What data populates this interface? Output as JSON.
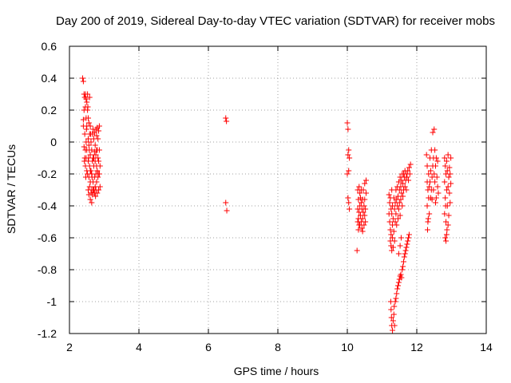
{
  "chart_data": {
    "type": "scatter",
    "title": "Day 200 of 2019, Sidereal Day-to-day VTEC variation (SDTVAR) for receiver mobs",
    "xlabel": "GPS time / hours",
    "ylabel": "SDTVAR / TECUs",
    "xlim": [
      2,
      14
    ],
    "ylim": [
      -1.2,
      0.6
    ],
    "xticks": [
      2,
      4,
      6,
      8,
      10,
      12,
      14
    ],
    "yticks": [
      0.6,
      0.4,
      0.2,
      0,
      -0.2,
      -0.4,
      -0.6,
      -0.8,
      -1,
      -1.2
    ],
    "xtick_labels": [
      "2",
      "4",
      "6",
      "8",
      "10",
      "12",
      "14"
    ],
    "ytick_labels": [
      "0.6",
      "0.4",
      "0.2",
      "0",
      "-0.2",
      "-0.4",
      "-0.6",
      "-0.8",
      "-1",
      "-1.2"
    ],
    "grid": true,
    "marker": "+",
    "series": [
      {
        "name": "SDTVAR",
        "color": "#ff0000",
        "points": [
          [
            2.38,
            0.4
          ],
          [
            2.4,
            0.38
          ],
          [
            2.4,
            0.14
          ],
          [
            2.4,
            0.1
          ],
          [
            2.42,
            0.3
          ],
          [
            2.42,
            0.2
          ],
          [
            2.42,
            -0.03
          ],
          [
            2.44,
            0.28
          ],
          [
            2.44,
            0.05
          ],
          [
            2.44,
            -0.1
          ],
          [
            2.46,
            0.3
          ],
          [
            2.46,
            0.22
          ],
          [
            2.46,
            -0.05
          ],
          [
            2.46,
            -0.15
          ],
          [
            2.48,
            0.27
          ],
          [
            2.48,
            0.15
          ],
          [
            2.48,
            0.0
          ],
          [
            2.48,
            -0.1
          ],
          [
            2.5,
            0.25
          ],
          [
            2.5,
            0.1
          ],
          [
            2.5,
            -0.05
          ],
          [
            2.5,
            -0.18
          ],
          [
            2.52,
            0.3
          ],
          [
            2.52,
            0.2
          ],
          [
            2.52,
            -0.2
          ],
          [
            2.54,
            0.15
          ],
          [
            2.54,
            0.02
          ],
          [
            2.54,
            -0.12
          ],
          [
            2.54,
            -0.3
          ],
          [
            2.56,
            0.12
          ],
          [
            2.56,
            -0.02
          ],
          [
            2.56,
            -0.22
          ],
          [
            2.56,
            -0.33
          ],
          [
            2.58,
            0.28
          ],
          [
            2.58,
            0.05
          ],
          [
            2.58,
            -0.15
          ],
          [
            2.58,
            -0.28
          ],
          [
            2.6,
            0.1
          ],
          [
            2.6,
            -0.08
          ],
          [
            2.6,
            -0.25
          ],
          [
            2.6,
            -0.36
          ],
          [
            2.62,
            0.0
          ],
          [
            2.62,
            -0.18
          ],
          [
            2.62,
            -0.32
          ],
          [
            2.64,
            -0.05
          ],
          [
            2.64,
            -0.2
          ],
          [
            2.64,
            -0.3
          ],
          [
            2.64,
            -0.38
          ],
          [
            2.66,
            0.05
          ],
          [
            2.66,
            -0.12
          ],
          [
            2.66,
            -0.33
          ],
          [
            2.68,
            0.08
          ],
          [
            2.68,
            -0.1
          ],
          [
            2.68,
            -0.25
          ],
          [
            2.7,
            0.02
          ],
          [
            2.7,
            -0.15
          ],
          [
            2.7,
            -0.3
          ],
          [
            2.72,
            0.06
          ],
          [
            2.72,
            -0.06
          ],
          [
            2.72,
            -0.22
          ],
          [
            2.72,
            -0.32
          ],
          [
            2.74,
            -0.02
          ],
          [
            2.74,
            -0.12
          ],
          [
            2.74,
            -0.28
          ],
          [
            2.76,
            0.08
          ],
          [
            2.76,
            -0.08
          ],
          [
            2.76,
            -0.2
          ],
          [
            2.76,
            -0.3
          ],
          [
            2.78,
            0.04
          ],
          [
            2.78,
            -0.15
          ],
          [
            2.78,
            -0.25
          ],
          [
            2.8,
            0.09
          ],
          [
            2.8,
            -0.05
          ],
          [
            2.8,
            -0.18
          ],
          [
            2.8,
            -0.32
          ],
          [
            2.82,
            0.02
          ],
          [
            2.82,
            -0.1
          ],
          [
            2.82,
            -0.22
          ],
          [
            2.84,
            0.07
          ],
          [
            2.84,
            -0.12
          ],
          [
            2.84,
            -0.3
          ],
          [
            2.86,
            0.1
          ],
          [
            2.86,
            -0.05
          ],
          [
            2.86,
            -0.2
          ],
          [
            2.88,
            -0.15
          ],
          [
            2.88,
            -0.28
          ],
          [
            2.55,
            -0.1
          ],
          [
            2.6,
            -0.18
          ],
          [
            2.7,
            -0.1
          ],
          [
            2.75,
            -0.34
          ],
          [
            2.53,
            0.22
          ],
          [
            2.47,
            -0.22
          ],
          [
            2.43,
            -0.12
          ],
          [
            2.65,
            -0.22
          ],
          [
            2.78,
            -0.05
          ],
          [
            2.68,
            -0.3
          ],
          [
            2.83,
            -0.2
          ],
          [
            2.57,
            -0.05
          ],
          [
            2.49,
            0.08
          ],
          [
            2.61,
            0.05
          ],
          [
            6.5,
            0.15
          ],
          [
            6.52,
            0.13
          ],
          [
            6.5,
            -0.38
          ],
          [
            6.53,
            -0.43
          ],
          [
            10.0,
            0.12
          ],
          [
            10.02,
            0.08
          ],
          [
            10.02,
            -0.08
          ],
          [
            10.0,
            -0.2
          ],
          [
            10.04,
            -0.18
          ],
          [
            10.02,
            -0.35
          ],
          [
            10.04,
            -0.38
          ],
          [
            10.06,
            -0.42
          ],
          [
            10.04,
            -0.05
          ],
          [
            10.06,
            -0.1
          ],
          [
            10.3,
            -0.3
          ],
          [
            10.3,
            -0.42
          ],
          [
            10.3,
            -0.5
          ],
          [
            10.32,
            -0.36
          ],
          [
            10.32,
            -0.48
          ],
          [
            10.32,
            -0.55
          ],
          [
            10.34,
            -0.28
          ],
          [
            10.34,
            -0.44
          ],
          [
            10.36,
            -0.32
          ],
          [
            10.36,
            -0.4
          ],
          [
            10.36,
            -0.52
          ],
          [
            10.38,
            -0.35
          ],
          [
            10.38,
            -0.46
          ],
          [
            10.4,
            -0.3
          ],
          [
            10.4,
            -0.38
          ],
          [
            10.4,
            -0.5
          ],
          [
            10.42,
            -0.42
          ],
          [
            10.42,
            -0.54
          ],
          [
            10.44,
            -0.36
          ],
          [
            10.44,
            -0.48
          ],
          [
            10.46,
            -0.3
          ],
          [
            10.46,
            -0.44
          ],
          [
            10.48,
            -0.4
          ],
          [
            10.48,
            -0.52
          ],
          [
            10.5,
            -0.26
          ],
          [
            10.5,
            -0.36
          ],
          [
            10.5,
            -0.46
          ],
          [
            10.52,
            -0.42
          ],
          [
            10.52,
            -0.5
          ],
          [
            10.54,
            -0.32
          ],
          [
            10.54,
            -0.24
          ],
          [
            10.34,
            -0.52
          ],
          [
            10.44,
            -0.56
          ],
          [
            10.28,
            -0.68
          ],
          [
            11.2,
            -0.33
          ],
          [
            11.2,
            -0.45
          ],
          [
            11.22,
            -0.38
          ],
          [
            11.22,
            -0.5
          ],
          [
            11.24,
            -0.35
          ],
          [
            11.24,
            -0.55
          ],
          [
            11.24,
            -0.62
          ],
          [
            11.26,
            -0.42
          ],
          [
            11.26,
            -0.58
          ],
          [
            11.26,
            -0.65
          ],
          [
            11.28,
            -0.3
          ],
          [
            11.28,
            -0.45
          ],
          [
            11.28,
            -0.68
          ],
          [
            11.3,
            -0.4
          ],
          [
            11.3,
            -0.52
          ],
          [
            11.3,
            -0.6
          ],
          [
            11.32,
            -0.48
          ],
          [
            11.32,
            -0.66
          ],
          [
            11.34,
            -0.35
          ],
          [
            11.34,
            -0.56
          ],
          [
            11.36,
            -0.42
          ],
          [
            11.36,
            -0.62
          ],
          [
            11.38,
            -0.38
          ],
          [
            11.38,
            -0.5
          ],
          [
            11.4,
            -0.3
          ],
          [
            11.4,
            -0.45
          ],
          [
            11.42,
            -0.36
          ],
          [
            11.42,
            -0.52
          ],
          [
            11.44,
            -0.28
          ],
          [
            11.44,
            -0.4
          ],
          [
            11.46,
            -0.34
          ],
          [
            11.46,
            -0.48
          ],
          [
            11.48,
            -0.25
          ],
          [
            11.48,
            -0.42
          ],
          [
            11.5,
            -0.3
          ],
          [
            11.5,
            -0.38
          ],
          [
            11.52,
            -0.22
          ],
          [
            11.52,
            -0.46
          ],
          [
            11.54,
            -0.28
          ],
          [
            11.54,
            -0.36
          ],
          [
            11.56,
            -0.24
          ],
          [
            11.56,
            -0.32
          ],
          [
            11.58,
            -0.2
          ],
          [
            11.58,
            -0.4
          ],
          [
            11.6,
            -0.26
          ],
          [
            11.6,
            -0.34
          ],
          [
            11.62,
            -0.2
          ],
          [
            11.62,
            -0.3
          ],
          [
            11.64,
            -0.22
          ],
          [
            11.66,
            -0.28
          ],
          [
            11.66,
            -0.18
          ],
          [
            11.68,
            -0.24
          ],
          [
            11.7,
            -0.2
          ],
          [
            11.7,
            -0.3
          ],
          [
            11.72,
            -0.22
          ],
          [
            11.74,
            -0.18
          ],
          [
            11.76,
            -0.24
          ],
          [
            11.78,
            -0.16
          ],
          [
            11.8,
            -0.2
          ],
          [
            11.82,
            -0.14
          ],
          [
            11.25,
            -1.0
          ],
          [
            11.26,
            -1.05
          ],
          [
            11.27,
            -1.1
          ],
          [
            11.28,
            -1.15
          ],
          [
            11.3,
            -1.18
          ],
          [
            11.32,
            -1.12
          ],
          [
            11.34,
            -1.08
          ],
          [
            11.35,
            -1.03
          ],
          [
            11.36,
            -1.15
          ],
          [
            11.38,
            -1.0
          ],
          [
            11.4,
            -0.98
          ],
          [
            11.42,
            -0.95
          ],
          [
            11.44,
            -0.92
          ],
          [
            11.46,
            -0.9
          ],
          [
            11.48,
            -0.88
          ],
          [
            11.5,
            -0.86
          ],
          [
            11.52,
            -0.84
          ],
          [
            11.54,
            -0.83
          ],
          [
            11.56,
            -0.85
          ],
          [
            11.58,
            -0.8
          ],
          [
            11.6,
            -0.78
          ],
          [
            11.62,
            -0.75
          ],
          [
            11.64,
            -0.72
          ],
          [
            11.66,
            -0.7
          ],
          [
            11.68,
            -0.68
          ],
          [
            11.7,
            -0.66
          ],
          [
            11.72,
            -0.64
          ],
          [
            11.74,
            -0.62
          ],
          [
            11.76,
            -0.6
          ],
          [
            11.78,
            -0.58
          ],
          [
            11.48,
            -0.7
          ],
          [
            11.52,
            -0.65
          ],
          [
            11.55,
            -0.6
          ],
          [
            12.28,
            -0.08
          ],
          [
            12.3,
            -0.15
          ],
          [
            12.3,
            -0.25
          ],
          [
            12.3,
            -0.4
          ],
          [
            12.32,
            -0.3
          ],
          [
            12.32,
            -0.5
          ],
          [
            12.34,
            -0.2
          ],
          [
            12.34,
            -0.35
          ],
          [
            12.36,
            -0.45
          ],
          [
            12.36,
            -0.28
          ],
          [
            12.38,
            -0.1
          ],
          [
            12.38,
            -0.25
          ],
          [
            12.4,
            -0.35
          ],
          [
            12.4,
            -0.18
          ],
          [
            12.42,
            -0.3
          ],
          [
            12.42,
            -0.05
          ],
          [
            12.44,
            -0.22
          ],
          [
            12.44,
            -0.36
          ],
          [
            12.46,
            0.06
          ],
          [
            12.46,
            -0.15
          ],
          [
            12.48,
            -0.1
          ],
          [
            12.48,
            -0.3
          ],
          [
            12.5,
            0.08
          ],
          [
            12.5,
            -0.2
          ],
          [
            12.52,
            -0.05
          ],
          [
            12.52,
            -0.25
          ],
          [
            12.54,
            -0.15
          ],
          [
            12.54,
            -0.38
          ],
          [
            12.56,
            -0.1
          ],
          [
            12.56,
            -0.35
          ],
          [
            12.58,
            -0.22
          ],
          [
            12.6,
            -0.12
          ],
          [
            12.6,
            -0.28
          ],
          [
            12.31,
            -0.55
          ],
          [
            12.33,
            -0.48
          ],
          [
            12.62,
            -0.32
          ],
          [
            12.8,
            -0.1
          ],
          [
            12.8,
            -0.25
          ],
          [
            12.8,
            -0.45
          ],
          [
            12.82,
            -0.15
          ],
          [
            12.82,
            -0.35
          ],
          [
            12.82,
            -0.6
          ],
          [
            12.84,
            -0.2
          ],
          [
            12.84,
            -0.5
          ],
          [
            12.84,
            -0.62
          ],
          [
            12.86,
            -0.12
          ],
          [
            12.86,
            -0.3
          ],
          [
            12.86,
            -0.58
          ],
          [
            12.88,
            -0.18
          ],
          [
            12.88,
            -0.4
          ],
          [
            12.9,
            -0.08
          ],
          [
            12.9,
            -0.28
          ],
          [
            12.9,
            -0.52
          ],
          [
            12.92,
            -0.22
          ],
          [
            12.92,
            -0.46
          ],
          [
            12.94,
            -0.16
          ],
          [
            12.94,
            -0.32
          ],
          [
            12.96,
            -0.2
          ],
          [
            12.96,
            -0.38
          ],
          [
            12.98,
            -0.1
          ],
          [
            12.98,
            -0.26
          ],
          [
            12.83,
            -0.4
          ],
          [
            12.87,
            -0.55
          ]
        ]
      }
    ]
  }
}
